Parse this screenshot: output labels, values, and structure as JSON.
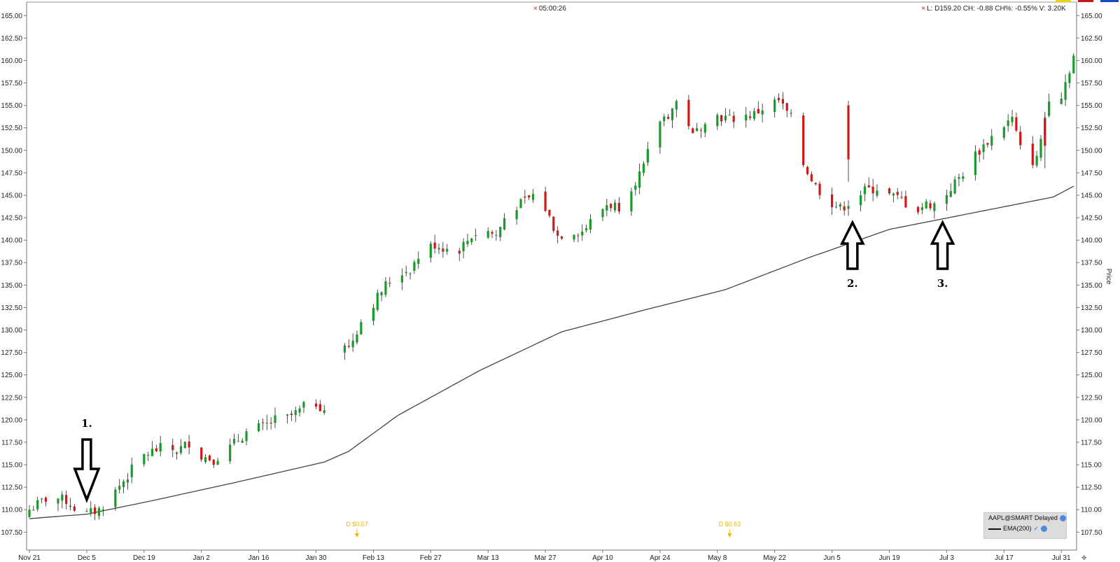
{
  "header": {
    "timer": "05:00:26",
    "quote": "L: D159.20 CH: -0.88 CH%: -0.55% V: 3.20K"
  },
  "legend": {
    "symbol": "AAPL@SMART Delayed",
    "ema": "EMA(200)"
  },
  "dividends": [
    {
      "label": "D $0.57",
      "x_date": "Feb 9"
    },
    {
      "label": "D $0.63",
      "x_date": "May 11"
    }
  ],
  "annotations": [
    {
      "label": "1.",
      "direction": "down",
      "x_date": "Dec 5",
      "price": 110.5
    },
    {
      "label": "2.",
      "direction": "up",
      "x_date": "Jun 12",
      "price": 142.5
    },
    {
      "label": "3.",
      "direction": "up",
      "x_date": "Jul 5",
      "price": 142.5
    }
  ],
  "colors": {
    "up": "#1a9a2a",
    "down": "#d01818",
    "ema": "#444444",
    "dividend": "#f0b400",
    "flags": [
      "#e8d31a",
      "#c81818",
      "#1848c8"
    ]
  },
  "chart_data": {
    "type": "candlestick",
    "title": "",
    "xlabel": "",
    "ylabel": "Price",
    "y_axis_side": "right and left",
    "ylim": [
      105.5,
      166.5
    ],
    "y_ticks": [
      107.5,
      110,
      112.5,
      115,
      117.5,
      120,
      122.5,
      125,
      127.5,
      130,
      132.5,
      135,
      137.5,
      140,
      142.5,
      145,
      147.5,
      150,
      152.5,
      155,
      157.5,
      160,
      162.5,
      165
    ],
    "x_tick_labels": [
      "Nov 21",
      "Dec 5",
      "Dec 19",
      "Jan 2",
      "Jan 16",
      "Jan 30",
      "Feb 13",
      "Feb 27",
      "Mar 13",
      "Mar 27",
      "Apr 10",
      "Apr 24",
      "May 8",
      "May 22",
      "Jun 5",
      "Jun 19",
      "Jul 3",
      "Jul 17",
      "Jul 31"
    ],
    "grid": false,
    "close_series": {
      "name": "AAPL",
      "anchor_days": [
        0,
        5,
        9,
        12,
        14,
        17,
        20,
        24,
        27,
        30,
        33,
        36,
        39,
        42,
        45,
        48,
        51,
        54,
        57,
        60,
        63,
        66,
        69,
        72,
        75,
        78,
        81,
        84,
        87,
        90,
        93,
        96,
        99,
        102,
        105,
        108,
        111,
        114,
        117,
        120,
        123,
        126,
        129,
        132,
        135,
        138,
        141,
        144,
        147,
        150,
        153,
        156,
        159,
        162,
        165,
        168,
        171,
        174,
        177,
        180,
        183,
        186,
        189,
        192,
        195,
        198,
        201,
        204,
        207,
        210,
        213,
        216,
        219,
        222,
        225,
        228,
        231,
        234,
        237,
        240,
        243,
        246,
        249,
        252,
        255
      ],
      "anchor_close": [
        110.0,
        111.5,
        111.0,
        109.8,
        109.5,
        110.0,
        111.5,
        113.8,
        115.8,
        116.5,
        117.0,
        116.5,
        117.5,
        116.0,
        115.6,
        116.5,
        117.8,
        119.0,
        119.2,
        120.0,
        120.2,
        121.0,
        122.2,
        121.2,
        null,
        128.0,
        131.0,
        133.0,
        135.0,
        136.2,
        136.8,
        138.8,
        139.5,
        139.0,
        139.0,
        140.5,
        141.2,
        140.5,
        143.5,
        144.0,
        145.0,
        143.5,
        140.5,
        141.0,
        141.0,
        142.5,
        144.0,
        143.8,
        146.0,
        148.0,
        153.0,
        154.0,
        156.0,
        151.5,
        153.5,
        153.8,
        153.5,
        153.8,
        154.0,
        155.0,
        155.5,
        153.5,
        148.5,
        146.0,
        144.5,
        143.5,
        144.5,
        145.5,
        145.8,
        145.0,
        144.5,
        143.2,
        144.0,
        144.0,
        145.8,
        147.5,
        149.5,
        151.0,
        152.5,
        153.5,
        148.5,
        149.0,
        156.0,
        156.2,
        160.5
      ]
    },
    "gap_after_day": 72,
    "gap_resume_day": 77,
    "ema_series": {
      "name": "EMA(200)",
      "anchor_days": [
        0,
        14,
        30,
        50,
        72,
        78,
        90,
        110,
        130,
        150,
        170,
        190,
        210,
        230,
        250,
        255
      ],
      "values": [
        109.0,
        109.5,
        111.0,
        113.0,
        115.3,
        116.5,
        120.5,
        125.5,
        129.8,
        132.2,
        134.5,
        138.0,
        141.2,
        143.0,
        144.8,
        146.0
      ]
    }
  }
}
